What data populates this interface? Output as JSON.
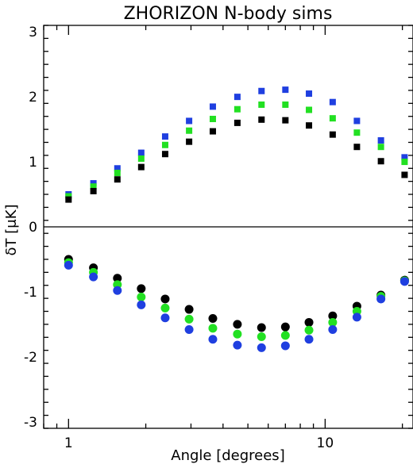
{
  "chart_data": {
    "type": "scatter",
    "title": "ZHORIZON N-body sims",
    "xlabel": "Angle [degrees]",
    "ylabel": "δT [μK]",
    "xscale": "log",
    "xlim": [
      0.8,
      22
    ],
    "ylim": [
      -3.1,
      3.1
    ],
    "xticks": [
      1,
      10
    ],
    "xtick_labels": [
      "1",
      "10"
    ],
    "yticks": [
      -3,
      -2,
      -1,
      0,
      1,
      2,
      3
    ],
    "ytick_labels": [
      "-3",
      "-2",
      "-1",
      "0",
      "1",
      "2",
      "3"
    ],
    "zero_line": true,
    "grid": false,
    "x": [
      1.0,
      1.25,
      1.55,
      1.92,
      2.38,
      2.95,
      3.65,
      4.55,
      5.65,
      7.0,
      8.65,
      10.7,
      13.3,
      16.5,
      20.4
    ],
    "series": [
      {
        "marker": "square",
        "color": "#1f3fe0",
        "values": [
          0.5,
          0.67,
          0.9,
          1.14,
          1.39,
          1.63,
          1.85,
          2.0,
          2.09,
          2.11,
          2.05,
          1.92,
          1.63,
          1.33,
          1.07
        ]
      },
      {
        "marker": "square",
        "color": "#22e022",
        "values": [
          0.47,
          0.62,
          0.83,
          1.05,
          1.26,
          1.48,
          1.66,
          1.81,
          1.88,
          1.88,
          1.8,
          1.67,
          1.45,
          1.23,
          1.0
        ]
      },
      {
        "marker": "square",
        "color": "#000000",
        "values": [
          0.42,
          0.55,
          0.73,
          0.92,
          1.12,
          1.31,
          1.47,
          1.6,
          1.65,
          1.64,
          1.56,
          1.42,
          1.23,
          1.01,
          0.8
        ]
      },
      {
        "marker": "circle",
        "color": "#000000",
        "values": [
          -0.5,
          -0.63,
          -0.79,
          -0.95,
          -1.11,
          -1.27,
          -1.41,
          -1.5,
          -1.55,
          -1.54,
          -1.47,
          -1.37,
          -1.22,
          -1.05,
          -0.82
        ]
      },
      {
        "marker": "circle",
        "color": "#22e022",
        "values": [
          -0.55,
          -0.7,
          -0.89,
          -1.08,
          -1.25,
          -1.42,
          -1.56,
          -1.65,
          -1.69,
          -1.67,
          -1.59,
          -1.47,
          -1.3,
          -1.07,
          -0.83
        ]
      },
      {
        "marker": "circle",
        "color": "#1f3fe0",
        "values": [
          -0.59,
          -0.77,
          -0.98,
          -1.2,
          -1.4,
          -1.58,
          -1.73,
          -1.82,
          -1.86,
          -1.83,
          -1.73,
          -1.58,
          -1.39,
          -1.11,
          -0.84
        ]
      }
    ]
  }
}
